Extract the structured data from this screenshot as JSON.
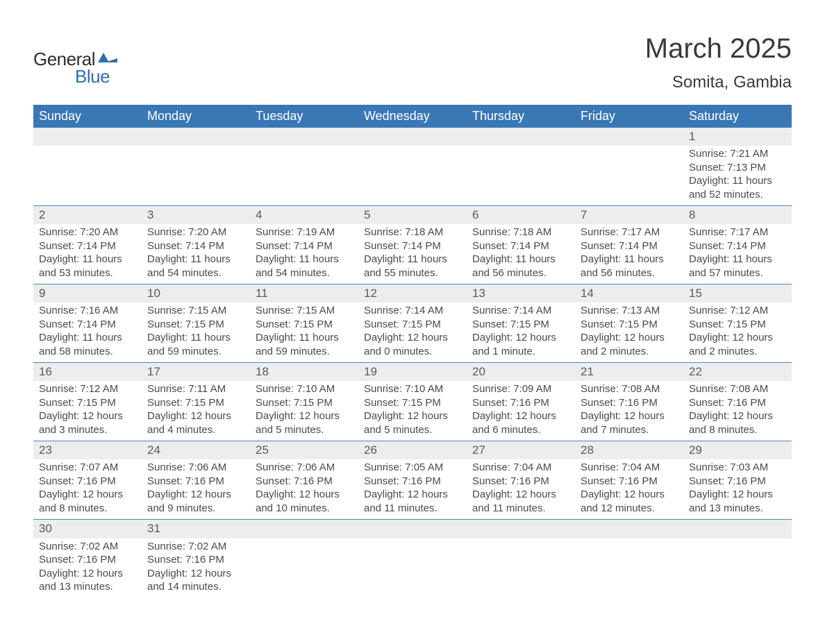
{
  "logo": {
    "general": "General",
    "blue": "Blue",
    "icon_color": "#2e6fb0"
  },
  "title": {
    "month": "March 2025",
    "location": "Somita, Gambia"
  },
  "calendar": {
    "type": "calendar-table",
    "header_bg": "#3a77b5",
    "header_fg": "#ffffff",
    "daynum_bg": "#ededed",
    "divider_color": "#4f86bd",
    "text_color": "#4a4a4a",
    "font_size_body": 15,
    "font_size_header": 18,
    "days": [
      "Sunday",
      "Monday",
      "Tuesday",
      "Wednesday",
      "Thursday",
      "Friday",
      "Saturday"
    ],
    "weeks": [
      [
        null,
        null,
        null,
        null,
        null,
        null,
        {
          "n": "1",
          "sunrise": "Sunrise: 7:21 AM",
          "sunset": "Sunset: 7:13 PM",
          "daylight": "Daylight: 11 hours and 52 minutes."
        }
      ],
      [
        {
          "n": "2",
          "sunrise": "Sunrise: 7:20 AM",
          "sunset": "Sunset: 7:14 PM",
          "daylight": "Daylight: 11 hours and 53 minutes."
        },
        {
          "n": "3",
          "sunrise": "Sunrise: 7:20 AM",
          "sunset": "Sunset: 7:14 PM",
          "daylight": "Daylight: 11 hours and 54 minutes."
        },
        {
          "n": "4",
          "sunrise": "Sunrise: 7:19 AM",
          "sunset": "Sunset: 7:14 PM",
          "daylight": "Daylight: 11 hours and 54 minutes."
        },
        {
          "n": "5",
          "sunrise": "Sunrise: 7:18 AM",
          "sunset": "Sunset: 7:14 PM",
          "daylight": "Daylight: 11 hours and 55 minutes."
        },
        {
          "n": "6",
          "sunrise": "Sunrise: 7:18 AM",
          "sunset": "Sunset: 7:14 PM",
          "daylight": "Daylight: 11 hours and 56 minutes."
        },
        {
          "n": "7",
          "sunrise": "Sunrise: 7:17 AM",
          "sunset": "Sunset: 7:14 PM",
          "daylight": "Daylight: 11 hours and 56 minutes."
        },
        {
          "n": "8",
          "sunrise": "Sunrise: 7:17 AM",
          "sunset": "Sunset: 7:14 PM",
          "daylight": "Daylight: 11 hours and 57 minutes."
        }
      ],
      [
        {
          "n": "9",
          "sunrise": "Sunrise: 7:16 AM",
          "sunset": "Sunset: 7:14 PM",
          "daylight": "Daylight: 11 hours and 58 minutes."
        },
        {
          "n": "10",
          "sunrise": "Sunrise: 7:15 AM",
          "sunset": "Sunset: 7:15 PM",
          "daylight": "Daylight: 11 hours and 59 minutes."
        },
        {
          "n": "11",
          "sunrise": "Sunrise: 7:15 AM",
          "sunset": "Sunset: 7:15 PM",
          "daylight": "Daylight: 11 hours and 59 minutes."
        },
        {
          "n": "12",
          "sunrise": "Sunrise: 7:14 AM",
          "sunset": "Sunset: 7:15 PM",
          "daylight": "Daylight: 12 hours and 0 minutes."
        },
        {
          "n": "13",
          "sunrise": "Sunrise: 7:14 AM",
          "sunset": "Sunset: 7:15 PM",
          "daylight": "Daylight: 12 hours and 1 minute."
        },
        {
          "n": "14",
          "sunrise": "Sunrise: 7:13 AM",
          "sunset": "Sunset: 7:15 PM",
          "daylight": "Daylight: 12 hours and 2 minutes."
        },
        {
          "n": "15",
          "sunrise": "Sunrise: 7:12 AM",
          "sunset": "Sunset: 7:15 PM",
          "daylight": "Daylight: 12 hours and 2 minutes."
        }
      ],
      [
        {
          "n": "16",
          "sunrise": "Sunrise: 7:12 AM",
          "sunset": "Sunset: 7:15 PM",
          "daylight": "Daylight: 12 hours and 3 minutes."
        },
        {
          "n": "17",
          "sunrise": "Sunrise: 7:11 AM",
          "sunset": "Sunset: 7:15 PM",
          "daylight": "Daylight: 12 hours and 4 minutes."
        },
        {
          "n": "18",
          "sunrise": "Sunrise: 7:10 AM",
          "sunset": "Sunset: 7:15 PM",
          "daylight": "Daylight: 12 hours and 5 minutes."
        },
        {
          "n": "19",
          "sunrise": "Sunrise: 7:10 AM",
          "sunset": "Sunset: 7:15 PM",
          "daylight": "Daylight: 12 hours and 5 minutes."
        },
        {
          "n": "20",
          "sunrise": "Sunrise: 7:09 AM",
          "sunset": "Sunset: 7:16 PM",
          "daylight": "Daylight: 12 hours and 6 minutes."
        },
        {
          "n": "21",
          "sunrise": "Sunrise: 7:08 AM",
          "sunset": "Sunset: 7:16 PM",
          "daylight": "Daylight: 12 hours and 7 minutes."
        },
        {
          "n": "22",
          "sunrise": "Sunrise: 7:08 AM",
          "sunset": "Sunset: 7:16 PM",
          "daylight": "Daylight: 12 hours and 8 minutes."
        }
      ],
      [
        {
          "n": "23",
          "sunrise": "Sunrise: 7:07 AM",
          "sunset": "Sunset: 7:16 PM",
          "daylight": "Daylight: 12 hours and 8 minutes."
        },
        {
          "n": "24",
          "sunrise": "Sunrise: 7:06 AM",
          "sunset": "Sunset: 7:16 PM",
          "daylight": "Daylight: 12 hours and 9 minutes."
        },
        {
          "n": "25",
          "sunrise": "Sunrise: 7:06 AM",
          "sunset": "Sunset: 7:16 PM",
          "daylight": "Daylight: 12 hours and 10 minutes."
        },
        {
          "n": "26",
          "sunrise": "Sunrise: 7:05 AM",
          "sunset": "Sunset: 7:16 PM",
          "daylight": "Daylight: 12 hours and 11 minutes."
        },
        {
          "n": "27",
          "sunrise": "Sunrise: 7:04 AM",
          "sunset": "Sunset: 7:16 PM",
          "daylight": "Daylight: 12 hours and 11 minutes."
        },
        {
          "n": "28",
          "sunrise": "Sunrise: 7:04 AM",
          "sunset": "Sunset: 7:16 PM",
          "daylight": "Daylight: 12 hours and 12 minutes."
        },
        {
          "n": "29",
          "sunrise": "Sunrise: 7:03 AM",
          "sunset": "Sunset: 7:16 PM",
          "daylight": "Daylight: 12 hours and 13 minutes."
        }
      ],
      [
        {
          "n": "30",
          "sunrise": "Sunrise: 7:02 AM",
          "sunset": "Sunset: 7:16 PM",
          "daylight": "Daylight: 12 hours and 13 minutes."
        },
        {
          "n": "31",
          "sunrise": "Sunrise: 7:02 AM",
          "sunset": "Sunset: 7:16 PM",
          "daylight": "Daylight: 12 hours and 14 minutes."
        },
        null,
        null,
        null,
        null,
        null
      ]
    ]
  }
}
